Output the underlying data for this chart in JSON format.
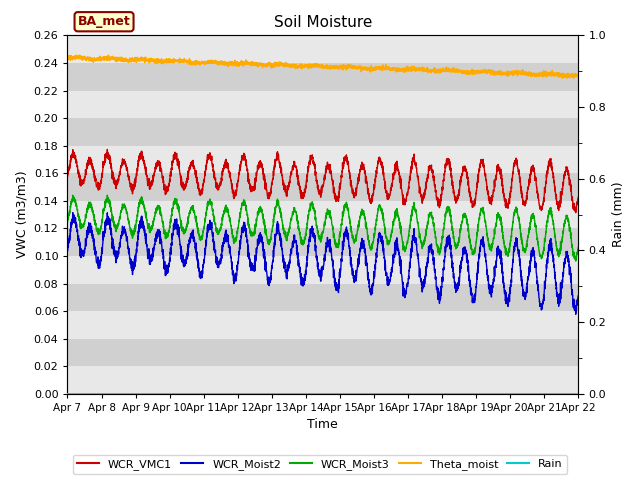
{
  "title": "Soil Moisture",
  "xlabel": "Time",
  "ylabel_left": "VWC (m3/m3)",
  "ylabel_right": "Rain (mm)",
  "ylim_left": [
    0.0,
    0.26
  ],
  "ylim_right": [
    0.0,
    1.0
  ],
  "yticks_left": [
    0.0,
    0.02,
    0.04,
    0.06,
    0.08,
    0.1,
    0.12,
    0.14,
    0.16,
    0.18,
    0.2,
    0.22,
    0.24,
    0.26
  ],
  "yticks_right_labels": [
    0.0,
    0.2,
    0.4,
    0.6,
    0.8,
    1.0
  ],
  "yticks_right_minor": [
    0.1,
    0.3,
    0.5,
    0.7,
    0.9
  ],
  "xtick_labels": [
    "Apr 7",
    "Apr 8",
    "Apr 9",
    "Apr 10",
    "Apr 11",
    "Apr 12",
    "Apr 13",
    "Apr 14",
    "Apr 15",
    "Apr 16",
    "Apr 17",
    "Apr 18",
    "Apr 19",
    "Apr 20",
    "Apr 21",
    "Apr 22"
  ],
  "num_days": 15,
  "background_color": "#dcdcdc",
  "band_color_light": "#e8e8e8",
  "band_color_dark": "#d0d0d0",
  "colors": {
    "WCR_VMC1": "#cc0000",
    "WCR_Moist2": "#0000cc",
    "WCR_Moist3": "#00aa00",
    "Theta_moist": "#ffaa00",
    "Rain": "#00cccc"
  },
  "ba_met_label": "BA_met",
  "ba_met_bg": "#ffffcc",
  "ba_met_border": "#8b0000",
  "legend_labels": [
    "WCR_VMC1",
    "WCR_Moist2",
    "WCR_Moist3",
    "Theta_moist",
    "Rain"
  ]
}
